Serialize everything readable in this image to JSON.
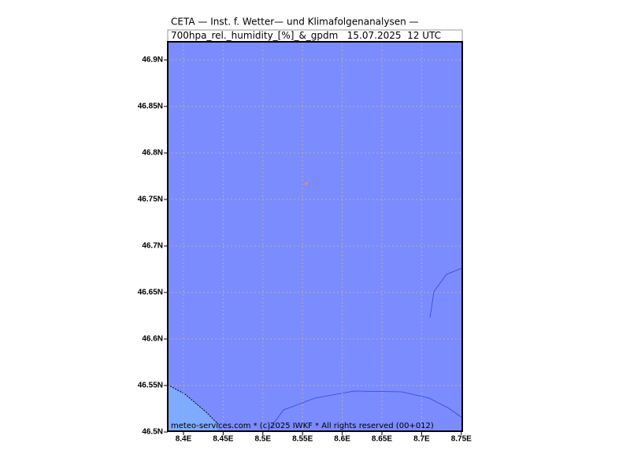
{
  "header": {
    "line1": "CETA — Inst. f. Wetter— und Klimafolgenanalysen —",
    "line2": "700hpa_rel._humidity_[%]_&_gpdm   15.07.2025  12 UTC"
  },
  "map": {
    "lat_labels": [
      "46.9N",
      "46.85N",
      "46.8N",
      "46.75N",
      "46.7N",
      "46.65N",
      "46.6N",
      "46.55N",
      "46.5N"
    ],
    "lon_labels": [
      "8.4E",
      "8.45E",
      "8.5E",
      "8.55E",
      "8.6E",
      "8.65E",
      "8.7E",
      "8.75E"
    ]
  },
  "footer": "meteo-services.com * (c)2025 IWKF * All rights reserved (00+012)"
}
